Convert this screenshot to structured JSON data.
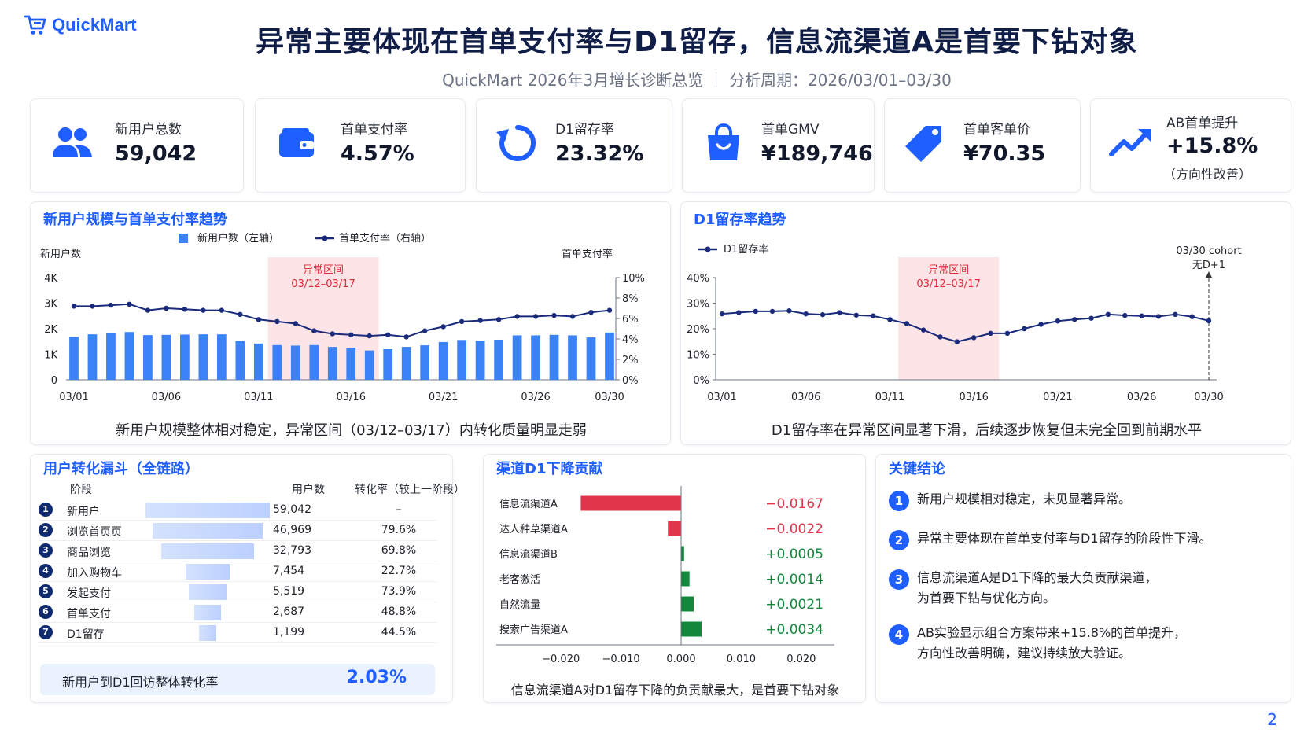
{
  "brand": "QuickMart",
  "title": "异常主要体现在首单支付率与D1留存，信息流渠道A是首要下钻对象",
  "subtitle": "QuickMart 2026年3月增长诊断总览 ｜ 分析周期：2026/03/01–03/30",
  "kpis": [
    {
      "icon": "users-icon",
      "label": "新用户总数",
      "value": "59,042",
      "sub": ""
    },
    {
      "icon": "wallet-icon",
      "label": "首单支付率",
      "value": "4.57%",
      "sub": ""
    },
    {
      "icon": "refresh-icon",
      "label": "D1留存率",
      "value": "23.32%",
      "sub": ""
    },
    {
      "icon": "shopping-bag-icon",
      "label": "首单GMV",
      "value": "¥189,746",
      "sub": ""
    },
    {
      "icon": "price-tag-icon",
      "label": "首单客单价",
      "value": "¥70.35",
      "sub": ""
    },
    {
      "icon": "trend-up-icon",
      "label": "AB首单提升",
      "value": "+15.8%",
      "sub": "（方向性改善）"
    }
  ],
  "colors": {
    "brand": "#1f5eff",
    "navy": "#1a2b7c",
    "bar": "#3b82f6",
    "anomaly": "#fde4e6",
    "anomaly_text": "#e02b3a",
    "negative": "#e0354b",
    "positive": "#13873b"
  },
  "charts": {
    "trend": {
      "title": "新用户规模与首单支付率趋势",
      "caption": "新用户规模整体相对稳定，异常区间（03/12–03/17）内转化质量明显走弱"
    },
    "retention": {
      "title": "D1留存率趋势",
      "caption": "D1留存率在异常区间显著下滑，后续逐步恢复但未完全回到前期水平"
    },
    "contribution": {
      "title": "渠道D1下降贡献",
      "caption": "信息流渠道A对D1留存下降的负贡献最大，是首要下钻对象"
    }
  },
  "chart_data": [
    {
      "type": "bar",
      "title": "新用户规模与首单支付率趋势",
      "ylabel": "新用户数",
      "y2label": "首单支付率",
      "ylim": [
        0,
        4000
      ],
      "y2lim": [
        0,
        10
      ],
      "yticks": [
        "0",
        "1K",
        "2K",
        "3K",
        "4K"
      ],
      "y2ticks": [
        "0%",
        "2%",
        "4%",
        "6%",
        "8%",
        "10%"
      ],
      "xticks": [
        "03/01",
        "03/06",
        "03/11",
        "03/16",
        "03/21",
        "03/26",
        "03/30"
      ],
      "legend": [
        "新用户数（左轴）",
        "首单支付率（右轴）"
      ],
      "anomaly": {
        "label": "异常区间",
        "range": "03/12–03/17",
        "start_day": 12,
        "end_day": 17
      },
      "x": [
        1,
        2,
        3,
        4,
        5,
        6,
        7,
        8,
        9,
        10,
        11,
        12,
        13,
        14,
        15,
        16,
        17,
        18,
        19,
        20,
        21,
        22,
        23,
        24,
        25,
        26,
        27,
        28,
        29,
        30
      ],
      "series": [
        {
          "name": "新用户数（左轴）",
          "type": "bar",
          "axis": "left",
          "values": [
            1680,
            1780,
            1820,
            1870,
            1750,
            1760,
            1770,
            1780,
            1780,
            1520,
            1420,
            1360,
            1340,
            1360,
            1290,
            1260,
            1150,
            1200,
            1290,
            1350,
            1480,
            1560,
            1530,
            1570,
            1740,
            1740,
            1760,
            1740,
            1660,
            1850
          ]
        },
        {
          "name": "首单支付率（右轴）",
          "type": "line",
          "axis": "right",
          "values": [
            7.2,
            7.2,
            7.3,
            7.4,
            6.8,
            7.0,
            6.9,
            6.8,
            6.8,
            6.4,
            5.9,
            5.7,
            5.5,
            4.8,
            4.5,
            4.4,
            4.3,
            4.4,
            4.2,
            4.8,
            5.2,
            5.7,
            5.8,
            5.9,
            6.2,
            6.2,
            6.3,
            6.2,
            6.6,
            6.8
          ]
        }
      ]
    },
    {
      "type": "line",
      "title": "D1留存率趋势",
      "ylim": [
        0,
        40
      ],
      "yticks": [
        "0%",
        "10%",
        "20%",
        "30%",
        "40%"
      ],
      "xticks": [
        "03/01",
        "03/06",
        "03/11",
        "03/16",
        "03/21",
        "03/26",
        "03/30"
      ],
      "legend": [
        "D1留存率"
      ],
      "anomaly": {
        "label": "异常区间",
        "range": "03/12–03/17",
        "start_day": 12,
        "end_day": 17
      },
      "annotation": {
        "line1": "03/30 cohort",
        "line2": "无D+1"
      },
      "x": [
        1,
        2,
        3,
        4,
        5,
        6,
        7,
        8,
        9,
        10,
        11,
        12,
        13,
        14,
        15,
        16,
        17,
        18,
        19,
        20,
        21,
        22,
        23,
        24,
        25,
        26,
        27,
        28,
        29,
        30
      ],
      "series": [
        {
          "name": "D1留存率",
          "values": [
            25.8,
            26.3,
            26.8,
            26.8,
            27.0,
            25.8,
            25.5,
            26.3,
            25.3,
            25.0,
            23.6,
            22.0,
            19.5,
            16.8,
            14.9,
            16.5,
            18.2,
            18.2,
            20.0,
            21.7,
            23.0,
            23.6,
            24.1,
            25.6,
            25.2,
            25.0,
            24.8,
            25.6,
            24.7,
            23.1
          ]
        }
      ]
    },
    {
      "type": "bar",
      "orientation": "horizontal",
      "title": "渠道D1下降贡献",
      "xlim": [
        -0.025,
        0.025
      ],
      "xticks": [
        "−0.020",
        "−0.010",
        "0.000",
        "0.010",
        "0.020"
      ],
      "categories": [
        "信息流渠道A",
        "达人种草渠道A",
        "信息流渠道B",
        "老客激活",
        "自然流量",
        "搜索广告渠道A"
      ],
      "values": [
        -0.0167,
        -0.0022,
        0.0005,
        0.0014,
        0.0021,
        0.0034
      ],
      "labels": [
        "−0.0167",
        "−0.0022",
        "+0.0005",
        "+0.0014",
        "+0.0021",
        "+0.0034"
      ]
    }
  ],
  "funnel": {
    "title": "用户转化漏斗（全链路）",
    "headers": {
      "stage": "阶段",
      "users": "用户数",
      "rate": "转化率（较上一阶段）"
    },
    "rows": [
      {
        "no": "1",
        "stage": "新用户",
        "users": "59,042",
        "rate": "–",
        "users_n": 59042
      },
      {
        "no": "2",
        "stage": "浏览首页页",
        "users": "46,969",
        "rate": "79.6%",
        "users_n": 46969
      },
      {
        "no": "3",
        "stage": "商品浏览",
        "users": "32,793",
        "rate": "69.8%",
        "users_n": 32793
      },
      {
        "no": "4",
        "stage": "加入购物车",
        "users": "7,454",
        "rate": "22.7%",
        "users_n": 7454
      },
      {
        "no": "5",
        "stage": "发起支付",
        "users": "5,519",
        "rate": "73.9%",
        "users_n": 5519
      },
      {
        "no": "6",
        "stage": "首单支付",
        "users": "2,687",
        "rate": "48.8%",
        "users_n": 2687
      },
      {
        "no": "7",
        "stage": "D1留存",
        "users": "1,199",
        "rate": "44.5%",
        "users_n": 1199
      }
    ],
    "total_label": "新用户到D1回访整体转化率",
    "total_value": "2.03%"
  },
  "conclusions": {
    "title": "关键结论",
    "items": [
      {
        "no": "1",
        "lines": [
          "新用户规模相对稳定，未见显著异常。"
        ]
      },
      {
        "no": "2",
        "lines": [
          "异常主要体现在首单支付率与D1留存的阶段性下滑。"
        ]
      },
      {
        "no": "3",
        "lines": [
          "信息流渠道A是D1下降的最大负贡献渠道，",
          "为首要下钻与优化方向。"
        ]
      },
      {
        "no": "4",
        "lines": [
          "AB实验显示组合方案带来+15.8%的首单提升，",
          "方向性改善明确，建议持续放大验证。"
        ]
      }
    ]
  },
  "page_number": "2"
}
